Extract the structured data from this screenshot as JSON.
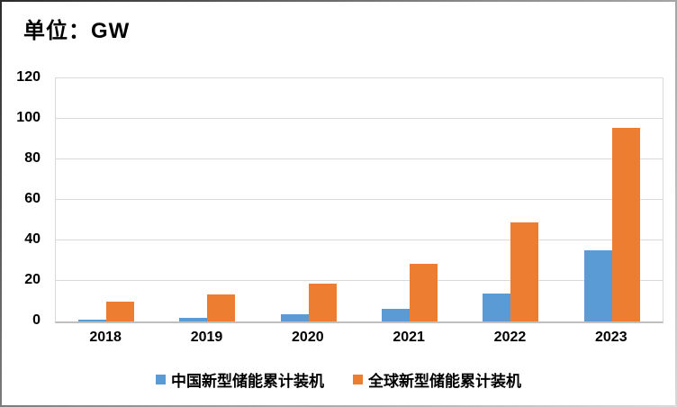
{
  "title": "单位：GW",
  "colors": {
    "china_series": "#5B9BD5",
    "global_series": "#ED7D31",
    "gridline": "#D9D9D9",
    "axis_line": "#BFBFBF",
    "text": "#000000",
    "background": "#FFFFFF"
  },
  "chart_data": {
    "type": "bar",
    "title": "单位：GW",
    "categories": [
      "2018",
      "2019",
      "2020",
      "2021",
      "2022",
      "2023"
    ],
    "series": [
      {
        "key": "china",
        "name": "中国新型储能累计装机",
        "color": "#5B9BD5",
        "values": [
          1.1,
          1.9,
          3.5,
          6.3,
          13.7,
          35
        ]
      },
      {
        "key": "global",
        "name": "全球新型储能累计装机",
        "color": "#ED7D31",
        "values": [
          10,
          13.5,
          18.6,
          28.4,
          49,
          95.5
        ]
      }
    ],
    "xlabel": "",
    "ylabel": "",
    "ylim": [
      0,
      120
    ],
    "yticks": [
      0,
      20,
      40,
      60,
      80,
      100,
      120
    ],
    "grid": true,
    "legend_position": "bottom"
  }
}
